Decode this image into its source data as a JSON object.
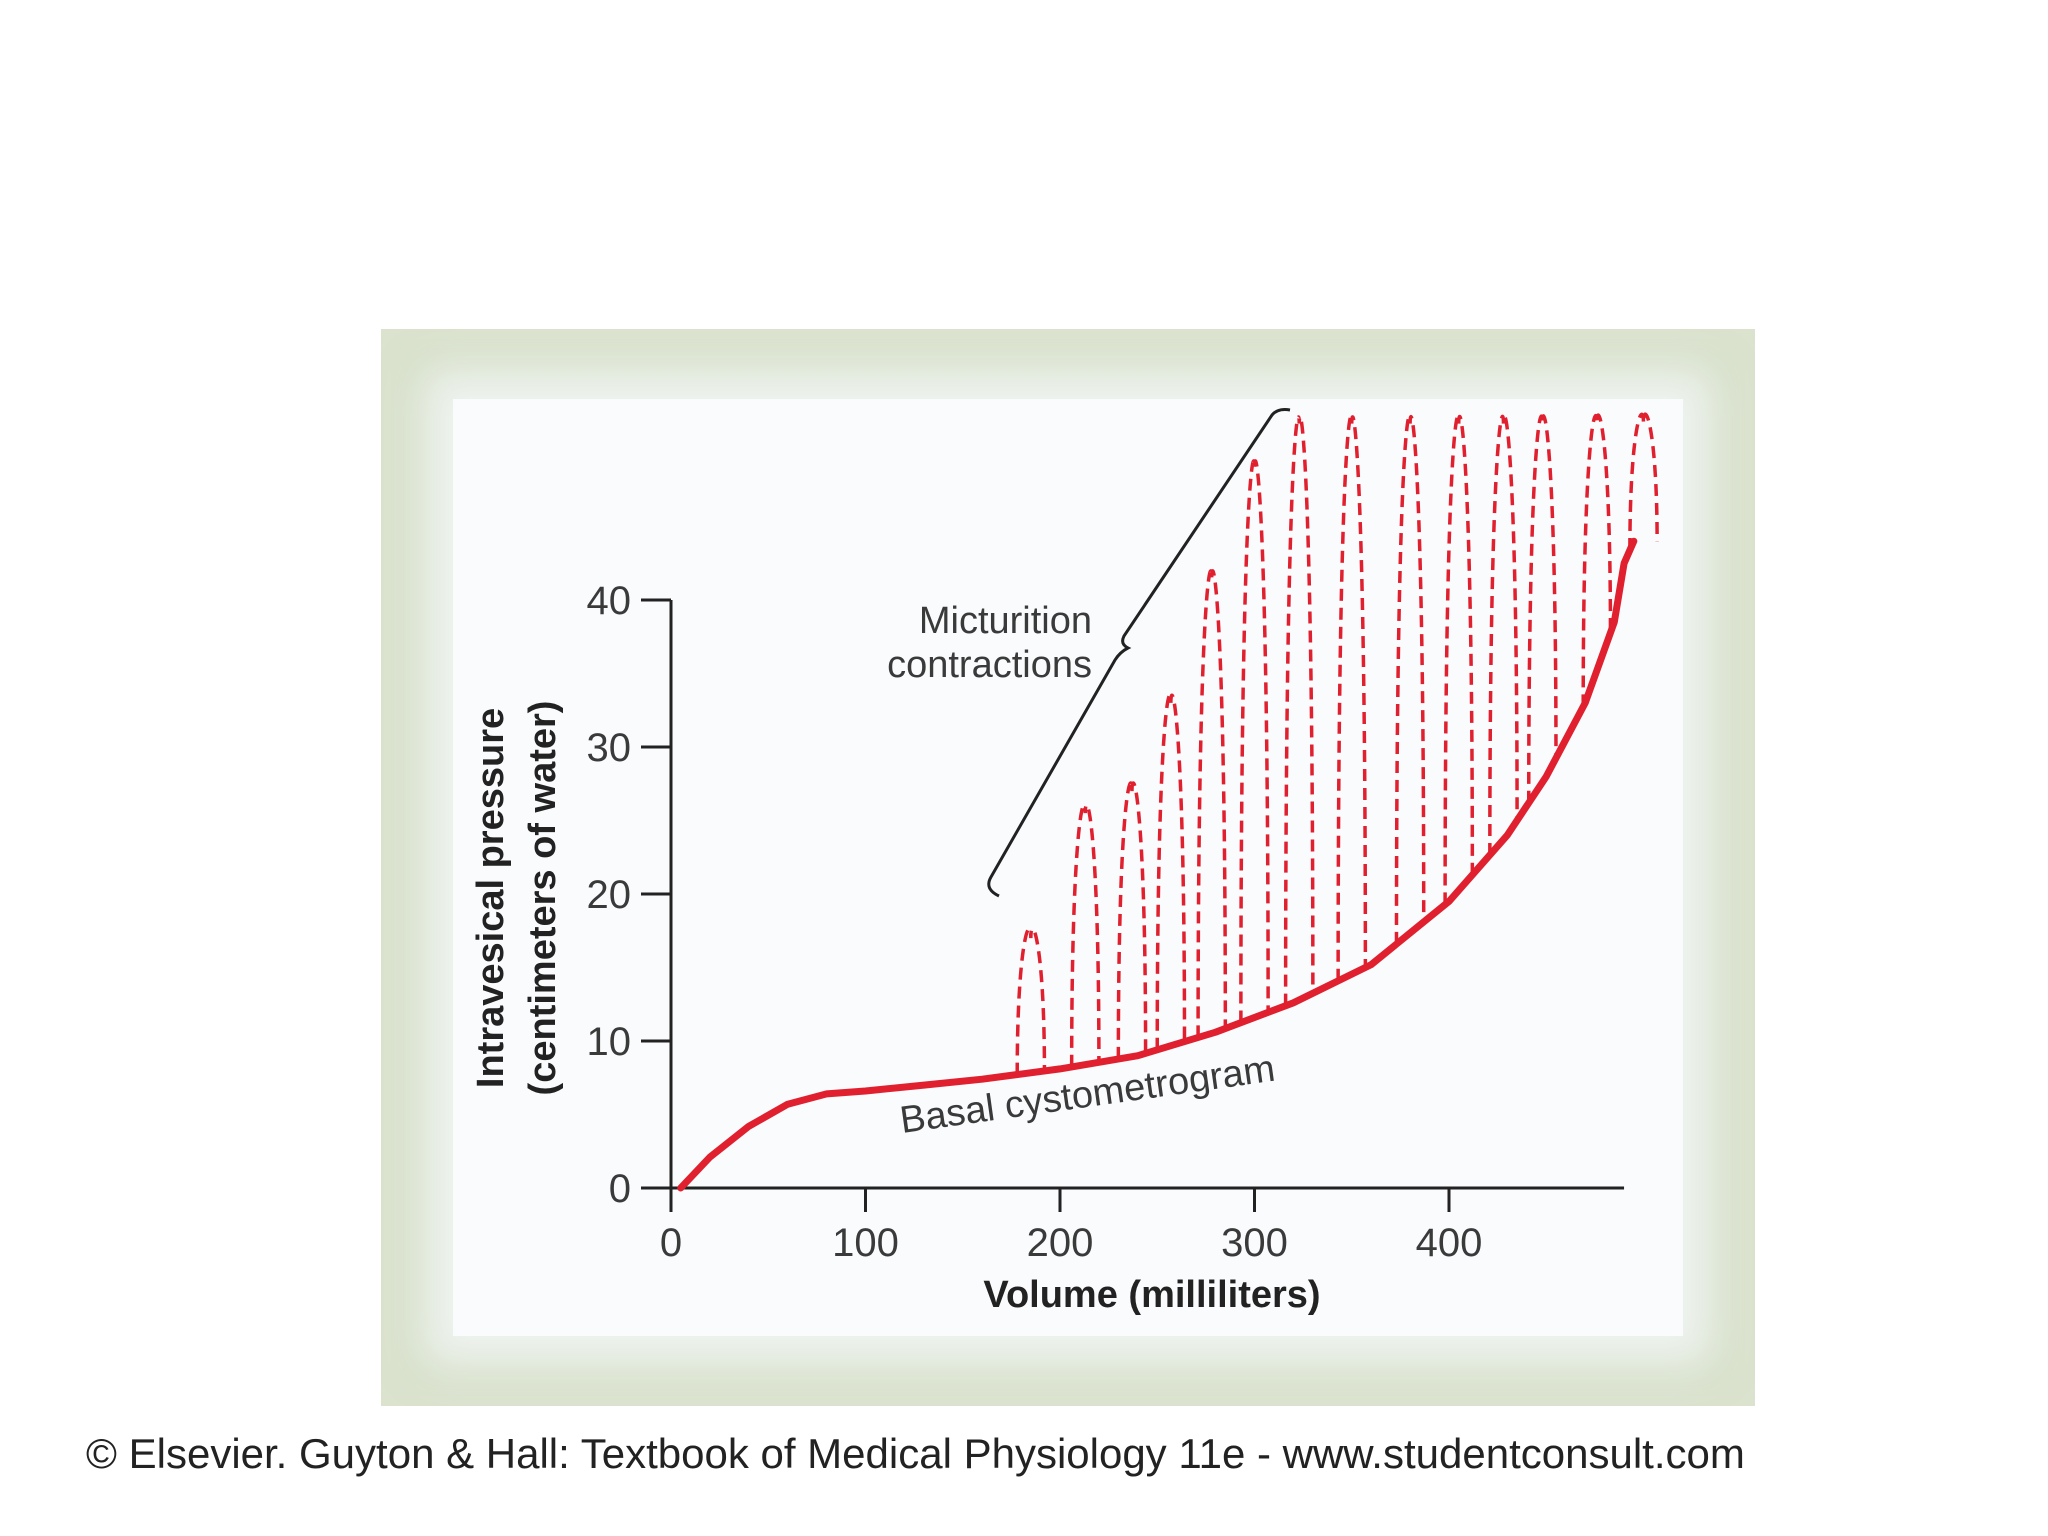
{
  "chart_data": {
    "type": "line",
    "xlabel": "Volume (milliliters)",
    "ylabel": [
      "Intravesical pressure",
      "(centimeters of water)"
    ],
    "xlim": [
      0,
      490
    ],
    "ylim": [
      0,
      40
    ],
    "x_ticks": [
      "0",
      "100",
      "200",
      "300",
      "400"
    ],
    "y_ticks": [
      "0",
      "10",
      "20",
      "30",
      "40"
    ],
    "grid": false,
    "series": [
      {
        "name": "Basal cystometrogram",
        "style": "solid",
        "color": "#e0202e",
        "x": [
          5,
          20,
          40,
          60,
          80,
          100,
          130,
          160,
          200,
          240,
          280,
          320,
          360,
          400,
          430,
          450,
          470,
          485,
          490,
          495
        ],
        "y": [
          0,
          2.1,
          4.2,
          5.7,
          6.4,
          6.6,
          7.0,
          7.4,
          8.1,
          9.0,
          10.6,
          12.6,
          15.2,
          19.5,
          24.0,
          28.0,
          33.0,
          38.5,
          42.5,
          44.0
        ]
      },
      {
        "name": "Micturition contractions",
        "style": "dashed",
        "color": "#e0202e",
        "peaks": [
          {
            "x": 185,
            "y": 17
          },
          {
            "x": 213,
            "y": 25.5
          },
          {
            "x": 237,
            "y": 27
          },
          {
            "x": 257,
            "y": 33
          },
          {
            "x": 278,
            "y": 41.5
          },
          {
            "x": 300,
            "y": 49
          },
          {
            "x": 323,
            "y": 52
          },
          {
            "x": 350,
            "y": 52
          },
          {
            "x": 380,
            "y": 52
          },
          {
            "x": 405,
            "y": 52
          },
          {
            "x": 428,
            "y": 52
          },
          {
            "x": 448,
            "y": 52
          },
          {
            "x": 476,
            "y": 52
          },
          {
            "x": 500,
            "y": 52
          }
        ]
      }
    ],
    "annotations": [
      {
        "text": [
          "Micturition",
          "contractions"
        ],
        "points_to": "Micturition contractions"
      },
      {
        "text": "Basal cystometrogram",
        "points_to": "Basal cystometrogram"
      }
    ]
  },
  "caption": "© Elsevier. Guyton & Hall: Textbook of Medical Physiology 11e - www.studentconsult.com"
}
